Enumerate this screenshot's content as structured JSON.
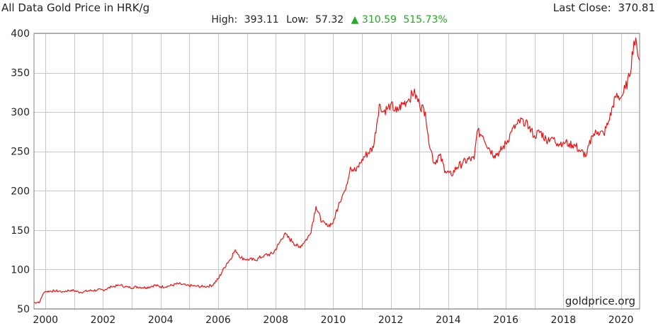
{
  "chart_data": {
    "type": "line",
    "title": "All Data Gold Price in HRK/g",
    "stats": {
      "high_label": "High:",
      "high": "393.11",
      "low_label": "Low:",
      "low": "57.32",
      "change": "310.59",
      "change_pct": "515.73%",
      "change_arrow": "▲"
    },
    "last_close_label": "Last Close:",
    "last_close": "370.81",
    "watermark": "goldprice.org",
    "xlabel": "",
    "ylabel": "",
    "xlim": [
      1999.6,
      2020.65
    ],
    "ylim": [
      50,
      400
    ],
    "x_ticks": [
      2000,
      2002,
      2004,
      2006,
      2008,
      2010,
      2012,
      2014,
      2016,
      2018,
      2020
    ],
    "x_tick_labels": [
      "2000",
      "2002",
      "2004",
      "2006",
      "2008",
      "2010",
      "2012",
      "2014",
      "2016",
      "2018",
      "2020"
    ],
    "y_ticks": [
      50,
      100,
      150,
      200,
      250,
      300,
      350,
      400
    ],
    "y_tick_labels": [
      "50",
      "100",
      "150",
      "200",
      "250",
      "300",
      "350",
      "400"
    ],
    "grid": true,
    "series": [
      {
        "name": "",
        "x": [
          1999.6,
          1999.8,
          1999.9,
          2000.0,
          2000.3,
          2000.6,
          2000.9,
          2001.2,
          2001.5,
          2001.8,
          2002.0,
          2002.3,
          2002.6,
          2002.9,
          2003.2,
          2003.5,
          2003.8,
          2004.0,
          2004.3,
          2004.6,
          2004.9,
          2005.2,
          2005.5,
          2005.8,
          2006.0,
          2006.15,
          2006.3,
          2006.4,
          2006.6,
          2006.8,
          2007.0,
          2007.3,
          2007.6,
          2007.9,
          2008.1,
          2008.3,
          2008.6,
          2008.8,
          2009.0,
          2009.2,
          2009.4,
          2009.6,
          2009.8,
          2010.0,
          2010.2,
          2010.4,
          2010.6,
          2010.8,
          2011.0,
          2011.2,
          2011.4,
          2011.6,
          2011.7,
          2011.9,
          2012.0,
          2012.2,
          2012.4,
          2012.6,
          2012.8,
          2013.0,
          2013.2,
          2013.3,
          2013.5,
          2013.7,
          2013.9,
          2014.1,
          2014.3,
          2014.5,
          2014.7,
          2014.9,
          2015.0,
          2015.2,
          2015.4,
          2015.6,
          2015.8,
          2016.0,
          2016.2,
          2016.4,
          2016.6,
          2016.8,
          2017.0,
          2017.2,
          2017.4,
          2017.6,
          2017.8,
          2018.0,
          2018.2,
          2018.4,
          2018.6,
          2018.8,
          2019.0,
          2019.2,
          2019.4,
          2019.6,
          2019.8,
          2020.0,
          2020.15,
          2020.3,
          2020.45,
          2020.55,
          2020.65
        ],
        "values": [
          58,
          59,
          68,
          72,
          73,
          72,
          74,
          71,
          73,
          74,
          74,
          78,
          80,
          77,
          78,
          77,
          80,
          78,
          79,
          82,
          80,
          79,
          78,
          80,
          88,
          98,
          108,
          112,
          125,
          115,
          113,
          112,
          118,
          120,
          132,
          145,
          135,
          128,
          135,
          145,
          180,
          160,
          155,
          160,
          185,
          200,
          230,
          225,
          240,
          248,
          255,
          310,
          300,
          305,
          310,
          300,
          310,
          315,
          325,
          310,
          300,
          270,
          235,
          245,
          225,
          220,
          230,
          235,
          240,
          240,
          275,
          270,
          255,
          245,
          250,
          260,
          275,
          285,
          290,
          280,
          270,
          275,
          265,
          268,
          260,
          262,
          260,
          258,
          250,
          245,
          270,
          275,
          272,
          290,
          320,
          318,
          330,
          345,
          390,
          385,
          365
        ]
      }
    ],
    "colors": {
      "line": "#ee1111",
      "title": "#ee2222",
      "change": "#22aa22"
    }
  }
}
